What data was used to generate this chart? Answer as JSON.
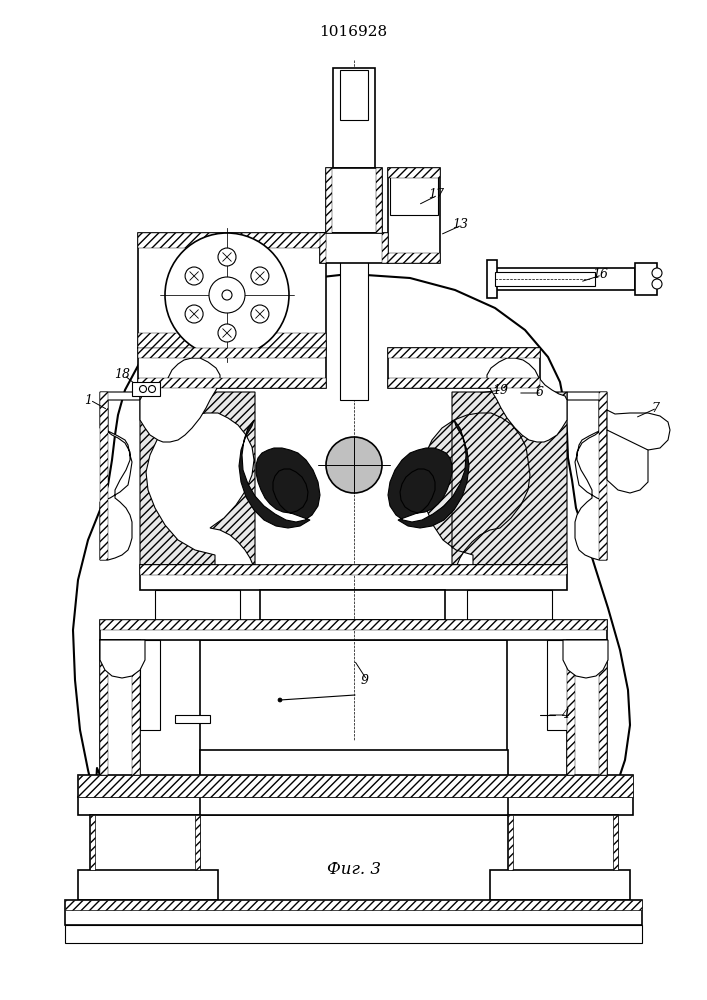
{
  "title": "1016928",
  "caption": "Фиг. 3",
  "bg_color": "#ffffff",
  "line_color": "#000000",
  "title_fontsize": 11,
  "caption_fontsize": 12
}
